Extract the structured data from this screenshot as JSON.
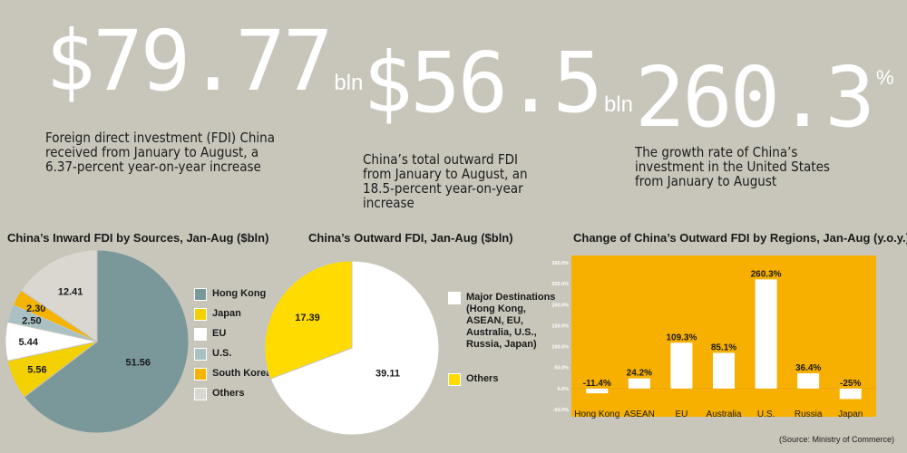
{
  "colors": {
    "background": "#c8c6bb",
    "hong_kong": "#7a979a",
    "japan": "#f3d000",
    "eu": "#ffffff",
    "us": "#a9c1c4",
    "south_korea": "#f4b400",
    "others_gray": "#d9d7d0",
    "outward_yellow": "#ffdb00",
    "bar_panel": "#f8b000"
  },
  "stats": [
    {
      "value": "$79.77",
      "unit": "bln",
      "desc": "Foreign direct investment (FDI) China\nreceived from January to August, a\n6.37-percent year-on-year increase"
    },
    {
      "value": "$56.5",
      "unit": "bln",
      "desc": "China’s total outward FDI\nfrom January to August, an\n18.5-percent year-on-year\nincrease"
    },
    {
      "value": "260.3",
      "unit": "%",
      "desc": "The growth rate of China’s\ninvestment in the United States\nfrom January to August"
    }
  ],
  "chart_data": [
    {
      "type": "pie",
      "title": "China’s Inward FDI by Sources, Jan-Aug ($bln)",
      "labels": [
        "Hong Kong",
        "Japan",
        "EU",
        "U.S.",
        "South Korea",
        "Others"
      ],
      "values": [
        51.56,
        5.56,
        5.44,
        2.5,
        2.3,
        12.41
      ],
      "value_labels": [
        "51.56",
        "5.56",
        "5.44",
        "2.50",
        "2.30",
        "12.41"
      ],
      "colors": [
        "#7a979a",
        "#f3d000",
        "#ffffff",
        "#a9c1c4",
        "#f4b400",
        "#d9d7d0"
      ],
      "legend_position": "right"
    },
    {
      "type": "pie",
      "title": "China’s Outward FDI, Jan-Aug ($bln)",
      "labels": [
        "Major Destinations\n(Hong Kong,\nASEAN,  EU,\nAustralia, U.S.,\nRussia, Japan)",
        "Others"
      ],
      "values": [
        39.11,
        17.39
      ],
      "value_labels": [
        "39.11",
        "17.39"
      ],
      "colors": [
        "#ffffff",
        "#ffdb00"
      ],
      "legend_position": "right"
    },
    {
      "type": "bar",
      "title": "Change of China’s Outward FDI by Regions, Jan-Aug (y.o.y.)",
      "categories": [
        "Hong Kong",
        "ASEAN",
        "EU",
        "Australia",
        "U.S.",
        "Russia",
        "Japan"
      ],
      "values": [
        -11.4,
        24.2,
        109.3,
        85.1,
        260.3,
        36.4,
        -25
      ],
      "value_labels": [
        "-11.4%",
        "24.2%",
        "109.3%",
        "85.1%",
        "260.3%",
        "36.4%",
        "-25%"
      ],
      "ylim": [
        -50,
        300
      ],
      "yticks": [
        -50,
        0,
        50,
        100,
        150,
        200,
        250,
        300
      ],
      "ytick_labels": [
        "-50.0%",
        "0.0%",
        "50.0%",
        "100.0%",
        "150.0%",
        "200.0%",
        "250.0%",
        "300.0%"
      ],
      "grid": false
    }
  ],
  "source": "(Source: Ministry of Commerce)"
}
